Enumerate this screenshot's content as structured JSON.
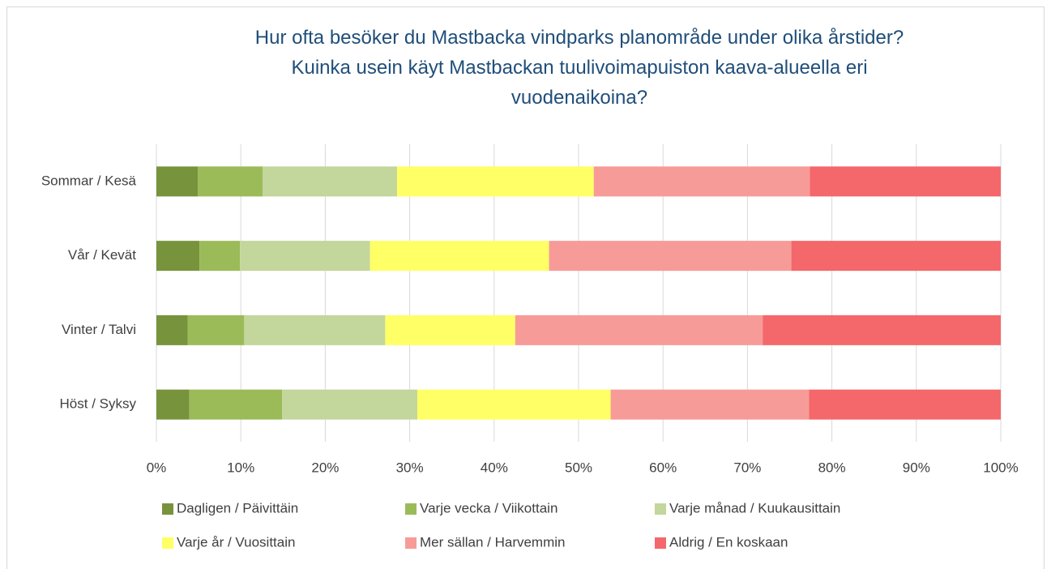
{
  "chart_data": {
    "type": "stacked_barh",
    "title": [
      "Hur ofta besöker du Mastbacka vindparks planområde under olika årstider?",
      "Kuinka usein käyt Mastbackan tuulivoimapuiston kaava-alueella eri vuodenaikoina?"
    ],
    "categories": [
      "Sommar / Kesä",
      "Vår / Kevät",
      "Vinter / Talvi",
      "Höst / Syksy"
    ],
    "series": [
      {
        "name": "Dagligen / Päivittäin",
        "color": "#77933c",
        "values": [
          4.9,
          5.1,
          3.7,
          3.9
        ]
      },
      {
        "name": "Varje vecka / Viikottain",
        "color": "#9bbb59",
        "values": [
          7.7,
          4.8,
          6.7,
          11.0
        ]
      },
      {
        "name": "Varje månad / Kuukausittain",
        "color": "#c3d69b",
        "values": [
          15.9,
          15.4,
          16.7,
          16.0
        ]
      },
      {
        "name": "Varje år / Vuosittain",
        "color": "#ffff66",
        "values": [
          23.3,
          21.2,
          15.4,
          22.9
        ]
      },
      {
        "name": "Mer sällan / Harvemmin",
        "color": "#f79b98",
        "values": [
          25.6,
          28.7,
          29.3,
          23.5
        ]
      },
      {
        "name": "Aldrig / En koskaan",
        "color": "#f4676a",
        "values": [
          22.6,
          24.8,
          28.2,
          22.7
        ]
      }
    ],
    "xlim": [
      0,
      100
    ],
    "xticks": [
      {
        "value": 0,
        "label": "0%"
      },
      {
        "value": 10,
        "label": "10%"
      },
      {
        "value": 20,
        "label": "20%"
      },
      {
        "value": 30,
        "label": "30%"
      },
      {
        "value": 40,
        "label": "40%"
      },
      {
        "value": 50,
        "label": "50%"
      },
      {
        "value": 60,
        "label": "60%"
      },
      {
        "value": 70,
        "label": "70%"
      },
      {
        "value": 80,
        "label": "80%"
      },
      {
        "value": 90,
        "label": "90%"
      },
      {
        "value": 100,
        "label": "100%"
      }
    ],
    "grid": true,
    "legend": "bottom"
  }
}
